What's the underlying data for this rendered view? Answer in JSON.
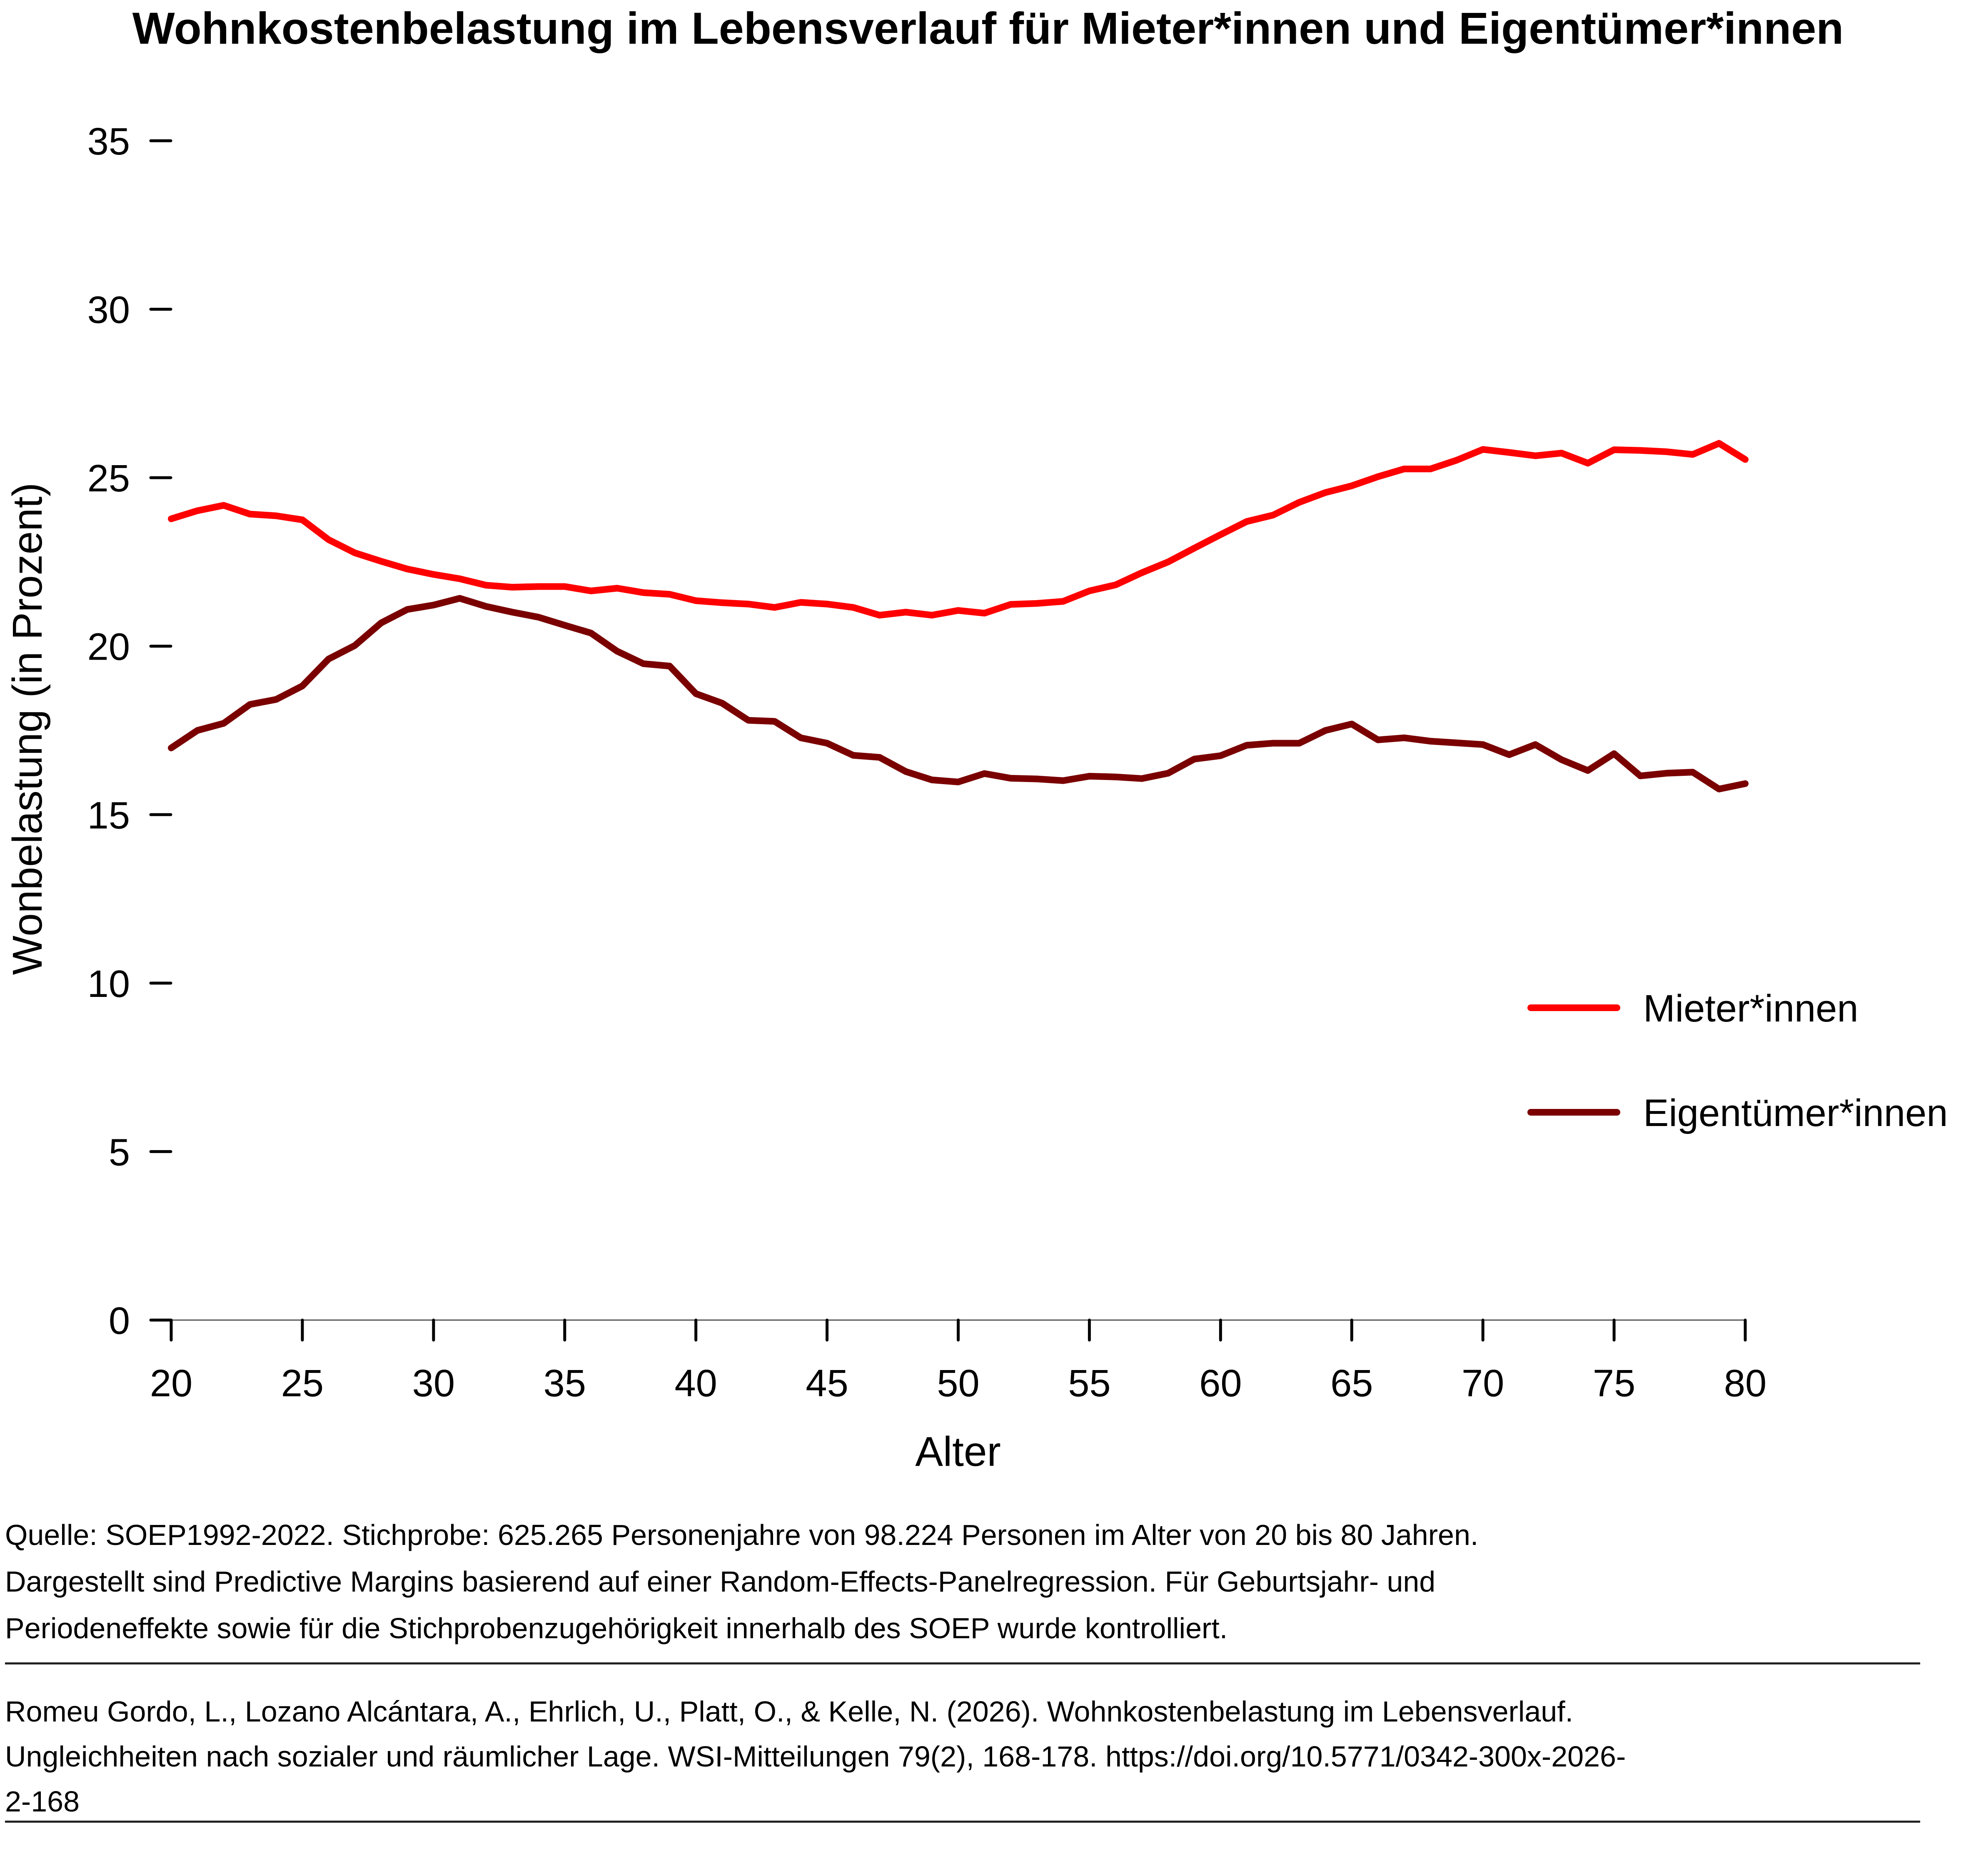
{
  "title": "Wohnkostenbelastung im Lebensverlauf für Mieter*innen und Eigentümer*innen",
  "chart_data": {
    "type": "line",
    "title": "Wohnkostenbelastung im Lebensverlauf für Mieter*innen und Eigentümer*innen",
    "xlabel": "Alter",
    "ylabel": "Wonbelastung (in Prozent)",
    "xlim": [
      20,
      80
    ],
    "ylim": [
      0,
      35
    ],
    "xticks": [
      20,
      25,
      30,
      35,
      40,
      45,
      50,
      55,
      60,
      65,
      70,
      75,
      80
    ],
    "yticks": [
      0,
      5,
      10,
      15,
      20,
      25,
      30,
      35
    ],
    "grid": false,
    "legend_position": "right",
    "x": [
      20,
      21,
      22,
      23,
      24,
      25,
      26,
      27,
      28,
      29,
      30,
      31,
      32,
      33,
      34,
      35,
      36,
      37,
      38,
      39,
      40,
      41,
      42,
      43,
      44,
      45,
      46,
      47,
      48,
      49,
      50,
      51,
      52,
      53,
      54,
      55,
      56,
      57,
      58,
      59,
      60,
      61,
      62,
      63,
      64,
      65,
      66,
      67,
      68,
      69,
      70,
      71,
      72,
      73,
      74,
      75,
      76,
      77,
      78,
      79,
      80
    ],
    "series": [
      {
        "name": "Mieter*innen",
        "color": "#FF0000",
        "values": [
          23.78,
          24.02,
          24.18,
          23.92,
          23.87,
          23.75,
          23.16,
          22.77,
          22.52,
          22.29,
          22.13,
          22.0,
          21.81,
          21.75,
          21.77,
          21.77,
          21.64,
          21.72,
          21.59,
          21.54,
          21.35,
          21.29,
          21.25,
          21.15,
          21.3,
          21.25,
          21.15,
          20.92,
          21.01,
          20.92,
          21.06,
          20.98,
          21.24,
          21.27,
          21.33,
          21.64,
          21.82,
          22.18,
          22.5,
          22.91,
          23.31,
          23.7,
          23.89,
          24.27,
          24.56,
          24.76,
          25.03,
          25.26,
          25.26,
          25.52,
          25.84,
          25.75,
          25.65,
          25.73,
          25.43,
          25.83,
          25.81,
          25.77,
          25.69,
          26.02,
          25.54
        ]
      },
      {
        "name": "Eigentümer*innen",
        "color": "#7A0000",
        "values": [
          16.98,
          17.5,
          17.71,
          18.27,
          18.42,
          18.82,
          19.62,
          20.02,
          20.69,
          21.09,
          21.22,
          21.42,
          21.18,
          21.01,
          20.86,
          20.62,
          20.39,
          19.85,
          19.48,
          19.41,
          18.59,
          18.31,
          17.8,
          17.77,
          17.28,
          17.12,
          16.76,
          16.7,
          16.28,
          16.03,
          15.97,
          16.22,
          16.08,
          16.06,
          16.01,
          16.14,
          16.12,
          16.07,
          16.23,
          16.65,
          16.75,
          17.06,
          17.12,
          17.12,
          17.5,
          17.69,
          17.22,
          17.28,
          17.18,
          17.13,
          17.08,
          16.78,
          17.08,
          16.63,
          16.31,
          16.81,
          16.15,
          16.23,
          16.26,
          15.76,
          15.92
        ]
      }
    ]
  },
  "footer": {
    "notes": [
      "Quelle: SOEP1992-2022. Stichprobe: 625.265 Personenjahre von 98.224 Personen im Alter von 20 bis 80 Jahren.",
      "Dargestellt sind Predictive Margins basierend auf einer Random-Effects-Panelregression. Für Geburtsjahr- und",
      "Periodeneffekte sowie für die Stichprobenzugehörigkeit innerhalb des SOEP wurde kontrolliert."
    ],
    "citation": [
      "Romeu Gordo, L., Lozano Alcántara, A., Ehrlich, U., Platt, O., & Kelle, N. (2026). Wohnkostenbelastung im Lebensverlauf.",
      "Ungleichheiten nach sozialer und räumlicher Lage. WSI-Mitteilungen 79(2), 168-178. https://doi.org/10.5771/0342-300x-2026-",
      "2-168"
    ]
  }
}
